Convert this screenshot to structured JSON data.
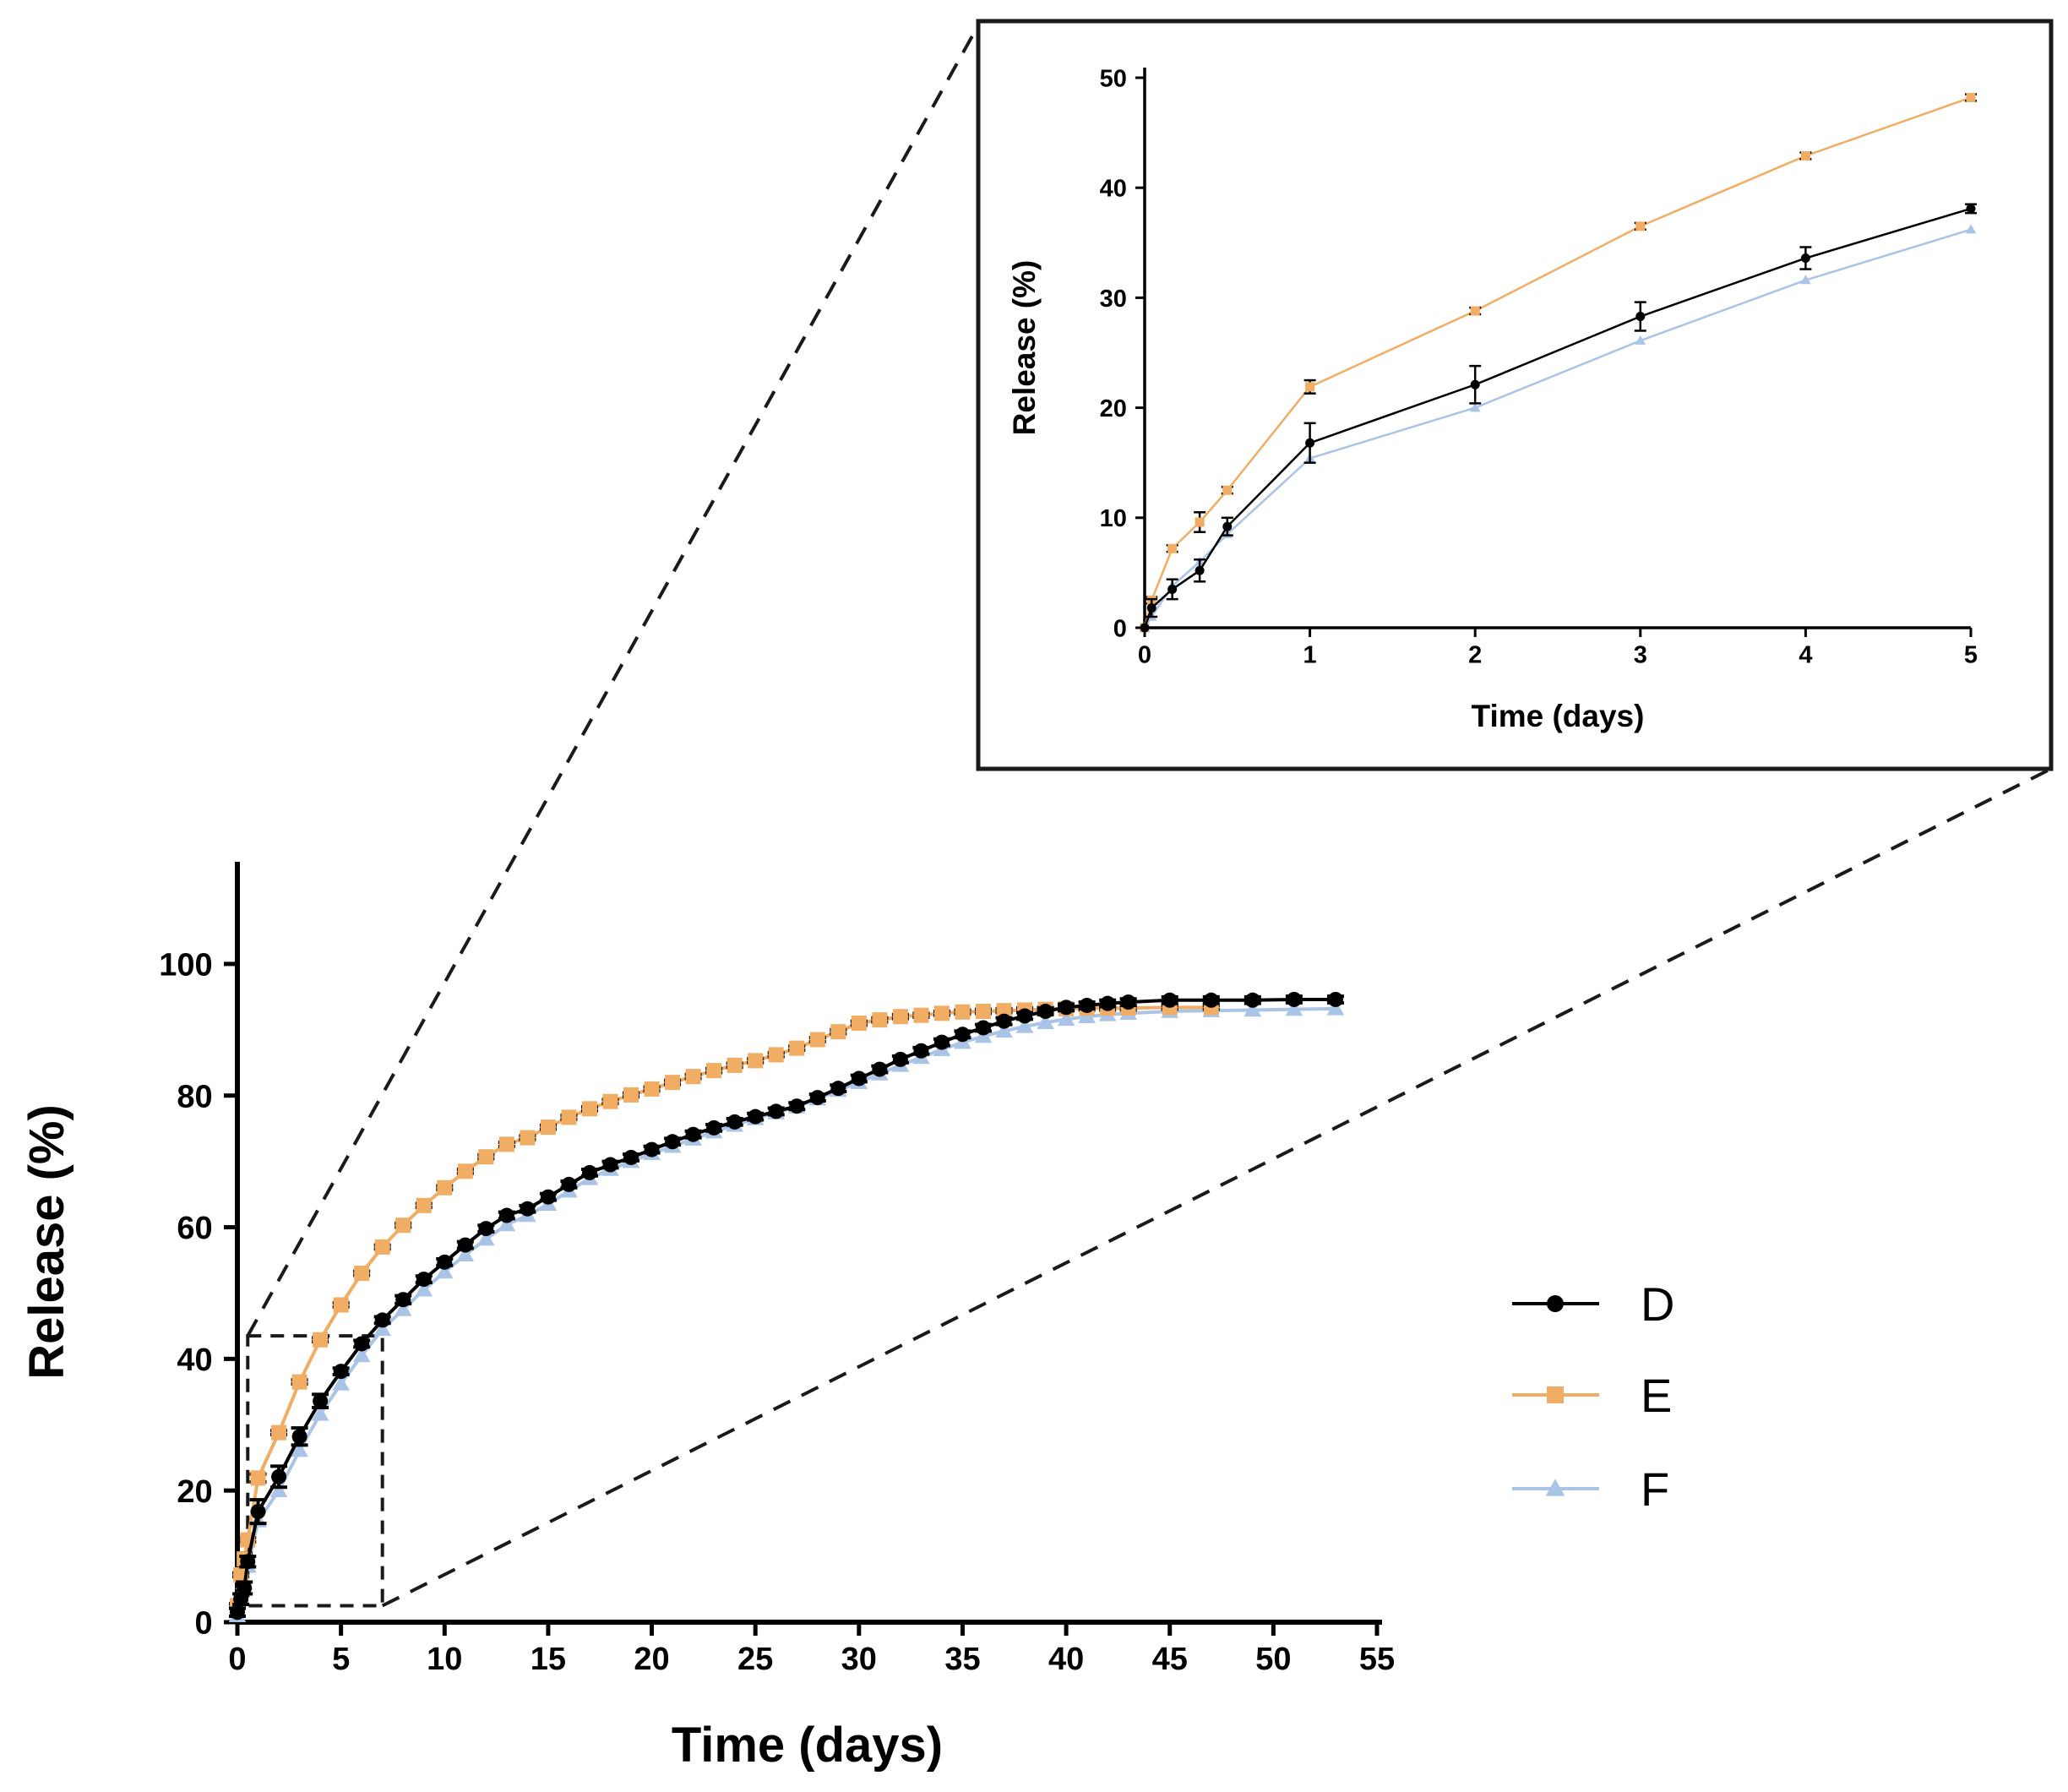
{
  "chart_data": [
    {
      "type": "line",
      "role": "main",
      "xlabel": "Time (days)",
      "ylabel": "Release (%)",
      "xlim": [
        0,
        55
      ],
      "ylim": [
        0,
        110
      ],
      "xticks": [
        0,
        5,
        10,
        15,
        20,
        25,
        30,
        35,
        40,
        45,
        50,
        55
      ],
      "yticks": [
        0,
        20,
        40,
        60,
        80,
        100
      ],
      "legend_position": "right",
      "series": [
        {
          "name": "D",
          "color": "#000000",
          "marker": "circle",
          "x": [
            0,
            0.167,
            0.333,
            0.5,
            1,
            2,
            3,
            4,
            5,
            6,
            7,
            8,
            9,
            10,
            11,
            12,
            13,
            14,
            15,
            16,
            17,
            18,
            19,
            20,
            21,
            22,
            23,
            24,
            25,
            26,
            27,
            28,
            29,
            30,
            31,
            32,
            33,
            34,
            35,
            36,
            37,
            38,
            39,
            40,
            41,
            42,
            43,
            45,
            47,
            49,
            51,
            53
          ],
          "y": [
            1.5,
            3.5,
            5.2,
            9.2,
            16.8,
            22.1,
            28.2,
            33.6,
            38.1,
            42.3,
            45.9,
            49.0,
            52.1,
            54.7,
            57.3,
            59.8,
            61.8,
            62.8,
            64.6,
            66.5,
            68.3,
            69.5,
            70.6,
            71.8,
            73.0,
            74.1,
            75.1,
            76.0,
            76.8,
            77.6,
            78.4,
            79.7,
            81.1,
            82.6,
            84.0,
            85.5,
            86.8,
            88.1,
            89.3,
            90.3,
            91.3,
            92.1,
            92.8,
            93.4,
            93.7,
            94.0,
            94.2,
            94.5,
            94.5,
            94.5,
            94.6,
            94.6
          ],
          "error": [
            0.6,
            0.8,
            0.9,
            0.8,
            1.8,
            1.6,
            1.3,
            1.0,
            0.5,
            0.5,
            0.5,
            0.6,
            0.5,
            0.5,
            0.5,
            0.5,
            0.5,
            0.5,
            0.5,
            0.5,
            0.5,
            0.5,
            0.5,
            0.5,
            0.5,
            0.5,
            0.5,
            0.5,
            0.5,
            0.5,
            0.5,
            0.5,
            0.5,
            0.5,
            0.5,
            0.5,
            0.5,
            0.5,
            0.5,
            0.5,
            0.5,
            0.5,
            0.5,
            0.5,
            0.5,
            0.5,
            0.5,
            0.5,
            0.5,
            0.5,
            0.5,
            0.5
          ]
        },
        {
          "name": "E",
          "color": "#f0ad63",
          "marker": "square",
          "x": [
            0,
            0.167,
            0.333,
            0.5,
            1,
            2,
            3,
            4,
            5,
            6,
            7,
            8,
            9,
            10,
            11,
            12,
            13,
            14,
            15,
            16,
            17,
            18,
            19,
            20,
            21,
            22,
            23,
            24,
            25,
            26,
            27,
            28,
            29,
            30,
            31,
            32,
            33,
            34,
            35,
            36,
            37,
            38,
            39,
            40,
            41,
            42,
            43,
            45,
            47
          ],
          "y": [
            2.5,
            7.2,
            9.6,
            12.5,
            21.9,
            28.8,
            36.5,
            42.9,
            48.2,
            53.0,
            57.0,
            60.3,
            63.3,
            66.0,
            68.5,
            70.7,
            72.6,
            73.6,
            75.2,
            76.7,
            78.0,
            79.1,
            80.1,
            81.0,
            82.0,
            82.9,
            83.8,
            84.6,
            85.3,
            86.2,
            87.2,
            88.5,
            89.7,
            91.0,
            91.5,
            92.0,
            92.2,
            92.5,
            92.7,
            92.8,
            92.9,
            93.0,
            93.1,
            93.2,
            93.3,
            93.3,
            93.3,
            93.4,
            93.4
          ],
          "error": [
            0.3,
            0.3,
            0.9,
            0.3,
            0.6,
            0.3,
            0.3,
            0.3,
            0.3,
            0.3,
            0.3,
            0.3,
            0.3,
            0.3,
            0.3,
            0.3,
            0.3,
            0.3,
            0.3,
            0.3,
            0.3,
            0.3,
            0.3,
            0.3,
            0.3,
            0.3,
            0.3,
            0.3,
            0.3,
            0.3,
            0.3,
            0.3,
            0.3,
            0.3,
            0.3,
            0.3,
            0.3,
            0.3,
            0.3,
            0.3,
            0.3,
            0.3,
            0.3,
            0.3,
            0.3,
            0.3,
            0.3,
            0.3,
            0.3
          ]
        },
        {
          "name": "F",
          "color": "#a9c4e6",
          "marker": "triangle",
          "x": [
            0,
            0.167,
            0.333,
            0.5,
            1,
            2,
            3,
            4,
            5,
            6,
            7,
            8,
            9,
            10,
            11,
            12,
            13,
            14,
            15,
            16,
            17,
            18,
            19,
            20,
            21,
            22,
            23,
            24,
            25,
            26,
            27,
            28,
            29,
            30,
            31,
            32,
            33,
            34,
            35,
            36,
            37,
            38,
            39,
            40,
            41,
            42,
            43,
            45,
            47,
            49,
            51,
            53
          ],
          "y": [
            1.0,
            3.8,
            6.0,
            8.5,
            15.4,
            20.0,
            26.1,
            31.6,
            36.2,
            40.5,
            44.5,
            47.5,
            50.5,
            53.2,
            55.8,
            58.2,
            60.4,
            61.8,
            63.5,
            65.5,
            67.4,
            68.8,
            70.0,
            71.2,
            72.3,
            73.4,
            74.5,
            75.5,
            76.5,
            77.4,
            78.3,
            79.5,
            80.8,
            82.0,
            83.3,
            84.6,
            85.8,
            87.0,
            88.1,
            89.0,
            89.8,
            90.5,
            91.1,
            91.6,
            92.0,
            92.3,
            92.5,
            92.8,
            92.9,
            93.0,
            93.1,
            93.2
          ],
          "error": []
        }
      ]
    },
    {
      "type": "line",
      "role": "inset",
      "xlabel": "Time (days)",
      "ylabel": "Release (%)",
      "xlim": [
        0,
        5
      ],
      "ylim": [
        0,
        50
      ],
      "xticks": [
        0,
        1,
        2,
        3,
        4,
        5
      ],
      "yticks": [
        0,
        10,
        20,
        30,
        40,
        50
      ],
      "series": [
        {
          "name": "D",
          "color": "#000000",
          "marker": "circle",
          "x": [
            0,
            0.042,
            0.167,
            0.333,
            0.5,
            1,
            2,
            3,
            4,
            5
          ],
          "y": [
            0,
            1.8,
            3.5,
            5.2,
            9.2,
            16.8,
            22.1,
            28.3,
            33.6,
            38.1
          ],
          "error": [
            0,
            0.8,
            0.9,
            1.0,
            0.8,
            1.8,
            1.7,
            1.3,
            1.0,
            0.4
          ]
        },
        {
          "name": "E",
          "color": "#f0ad63",
          "marker": "square",
          "x": [
            0,
            0.042,
            0.167,
            0.333,
            0.5,
            1,
            2,
            3,
            4,
            5
          ],
          "y": [
            0,
            2.5,
            7.2,
            9.6,
            12.5,
            21.9,
            28.8,
            36.5,
            42.9,
            48.2
          ],
          "error": [
            0,
            0.3,
            0.3,
            0.9,
            0.3,
            0.6,
            0.3,
            0.3,
            0.3,
            0.3
          ]
        },
        {
          "name": "F",
          "color": "#a9c4e6",
          "marker": "triangle",
          "x": [
            0,
            0.042,
            0.167,
            0.333,
            0.5,
            1,
            2,
            3,
            4,
            5
          ],
          "y": [
            0,
            1.0,
            3.8,
            6.0,
            8.5,
            15.4,
            20.0,
            26.1,
            31.6,
            36.2
          ],
          "error": []
        }
      ]
    }
  ],
  "zoom_region": {
    "x": [
      0.5,
      7
    ],
    "y": [
      2.5,
      43.5
    ]
  }
}
